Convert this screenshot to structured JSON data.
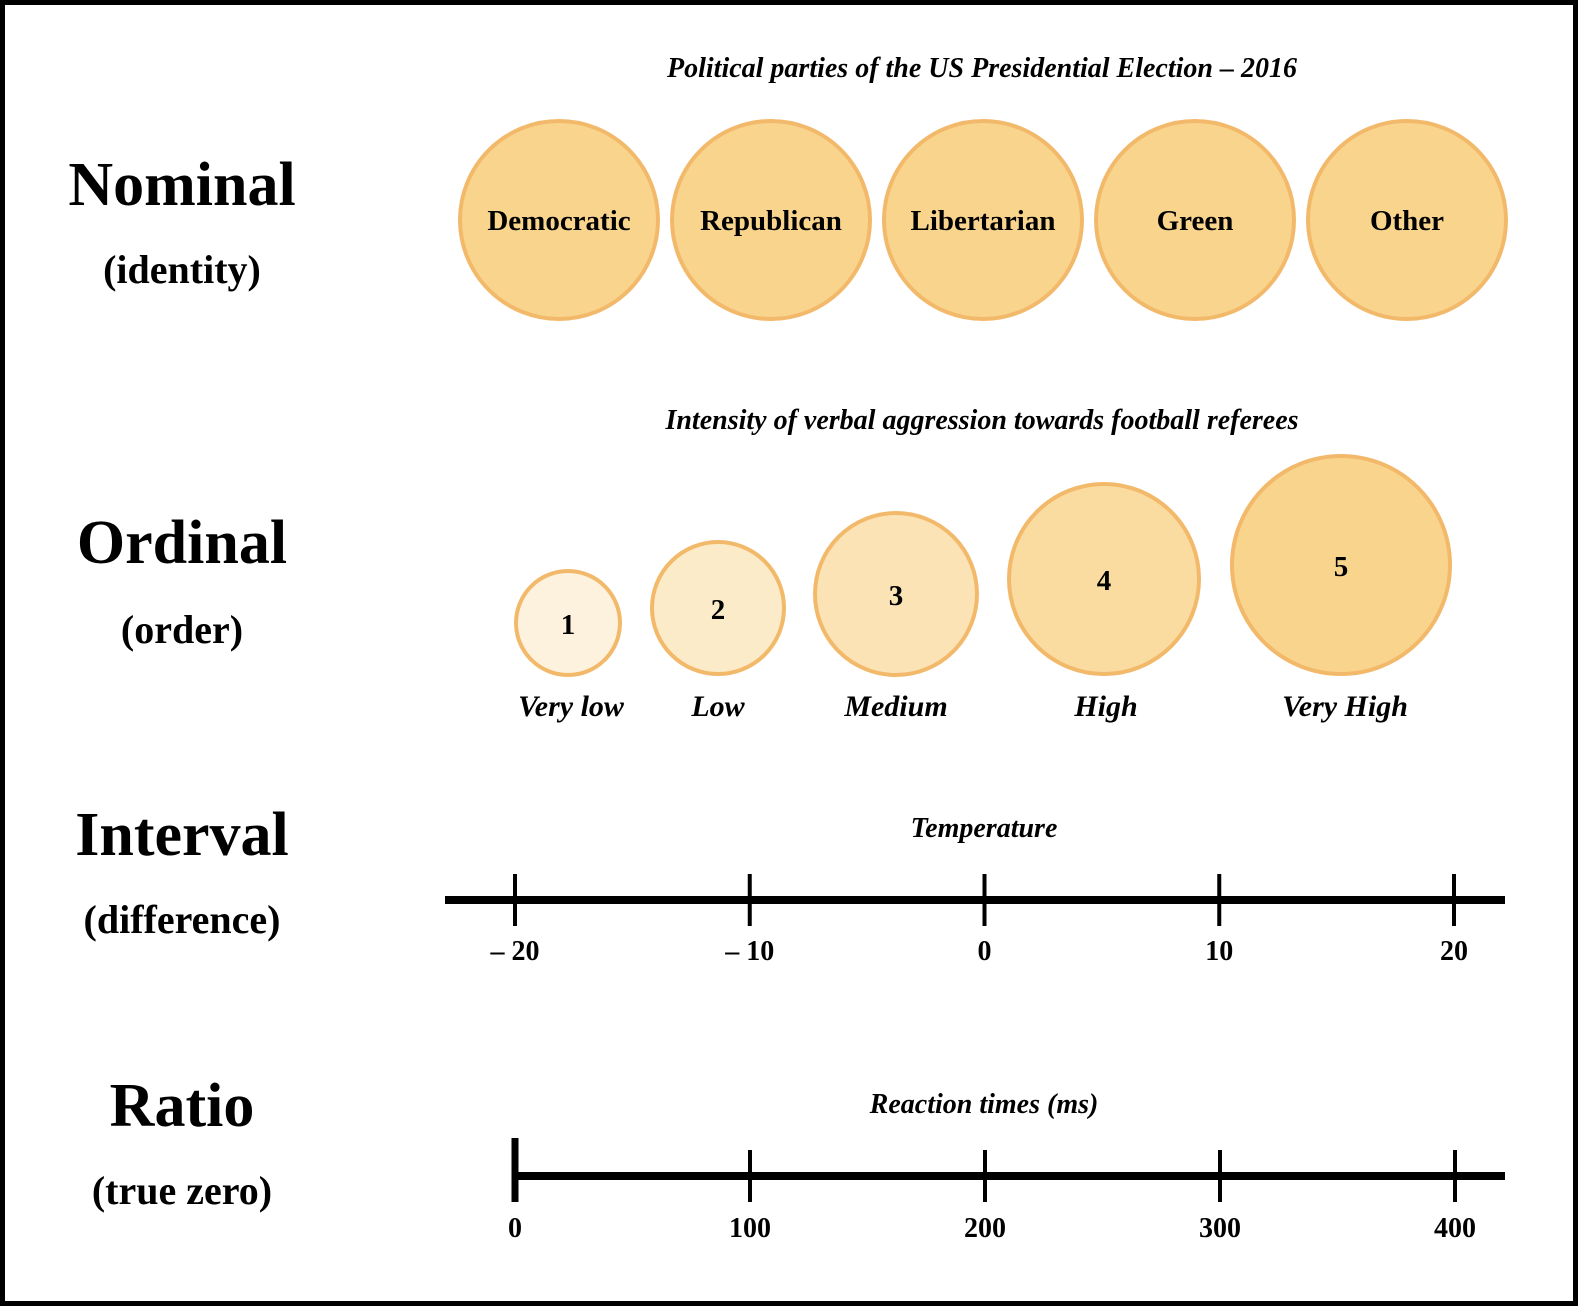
{
  "colors": {
    "circle_stroke": "#f3b96a",
    "circle_fill_full": "#f9d48d",
    "axis": "#000000"
  },
  "nominal": {
    "name": "Nominal",
    "subtitle": "(identity)",
    "title": "Political parties of the US Presidential Election – 2016",
    "categories": [
      "Democratic",
      "Republican",
      "Libertarian",
      "Green",
      "Other"
    ]
  },
  "ordinal": {
    "name": "Ordinal",
    "subtitle": "(order)",
    "title": "Intensity of verbal aggression towards football referees",
    "levels": [
      {
        "rank": "1",
        "label": "Very low",
        "intensity": 0.2
      },
      {
        "rank": "2",
        "label": "Low",
        "intensity": 0.4
      },
      {
        "rank": "3",
        "label": "Medium",
        "intensity": 0.6
      },
      {
        "rank": "4",
        "label": "High",
        "intensity": 0.8
      },
      {
        "rank": "5",
        "label": "Very High",
        "intensity": 1.0
      }
    ]
  },
  "interval": {
    "name": "Interval",
    "subtitle": "(difference)",
    "title": "Temperature",
    "ticks": [
      -20,
      -10,
      0,
      10,
      20
    ],
    "tick_labels": [
      "– 20",
      "– 10",
      "0",
      "10",
      "20"
    ]
  },
  "ratio": {
    "name": "Ratio",
    "subtitle": "(true zero)",
    "title": "Reaction times (ms)",
    "ticks": [
      0,
      100,
      200,
      300,
      400
    ],
    "tick_labels": [
      "0",
      "100",
      "200",
      "300",
      "400"
    ]
  }
}
